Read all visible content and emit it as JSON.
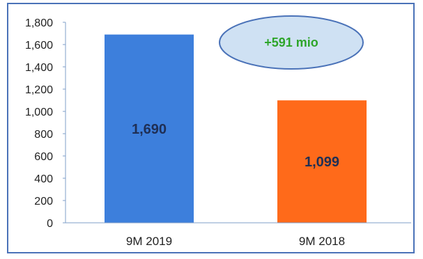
{
  "chart_data": {
    "type": "bar",
    "categories": [
      "9M 2019",
      "9M 2018"
    ],
    "values": [
      1690,
      1099
    ],
    "value_labels": [
      "1,690",
      "1,099"
    ],
    "bar_colors": [
      "#3d7fdc",
      "#ff6a1a"
    ],
    "ylim": [
      0,
      1800
    ],
    "yticks": [
      0,
      200,
      400,
      600,
      800,
      1000,
      1200,
      1400,
      1600,
      1800
    ],
    "ytick_labels": [
      "0",
      "200",
      "400",
      "600",
      "800",
      "1,000",
      "1,200",
      "1,400",
      "1,600",
      "1,800"
    ],
    "title": "",
    "xlabel": "",
    "ylabel": "",
    "grid": false,
    "legend": "none",
    "annotation": {
      "text": "+591 mio",
      "text_color": "#2ea52a",
      "fill": "#cfe1f3",
      "stroke": "#4a72b8"
    }
  }
}
